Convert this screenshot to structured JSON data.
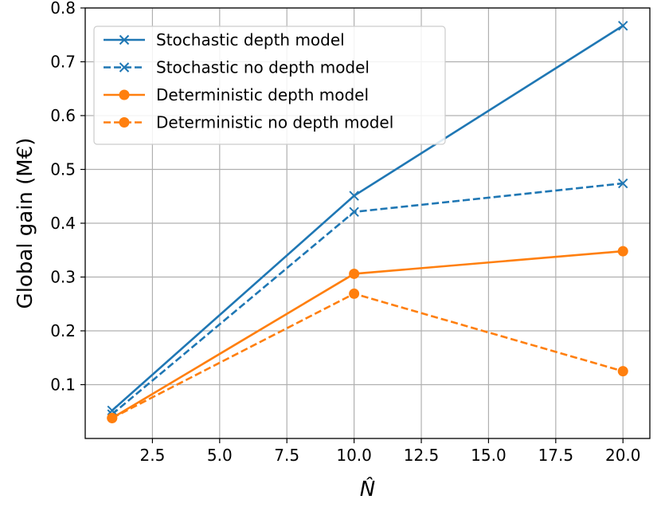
{
  "chart_data": {
    "type": "line",
    "title": "",
    "xlabel": "N̂",
    "ylabel": "Global gain (M€)",
    "x": [
      1,
      10,
      20
    ],
    "xlim": [
      -0.0,
      21.0
    ],
    "ylim": [
      0.0,
      0.8
    ],
    "xticks": [
      2.5,
      5.0,
      7.5,
      10.0,
      12.5,
      15.0,
      17.5,
      20.0
    ],
    "xtick_labels": [
      "2.5",
      "5.0",
      "7.5",
      "10.0",
      "12.5",
      "15.0",
      "17.5",
      "20.0"
    ],
    "yticks": [
      0.1,
      0.2,
      0.3,
      0.4,
      0.5,
      0.6,
      0.7,
      0.8
    ],
    "ytick_labels": [
      "0.1",
      "0.2",
      "0.3",
      "0.4",
      "0.5",
      "0.6",
      "0.7",
      "0.8"
    ],
    "grid": true,
    "legend_position": "top-left",
    "series": [
      {
        "name": "Stochastic depth model",
        "values": [
          0.052,
          0.451,
          0.767
        ],
        "color": "#1f77b4",
        "dash": "solid",
        "marker": "x"
      },
      {
        "name": "Stochastic no depth model",
        "values": [
          0.045,
          0.421,
          0.474
        ],
        "color": "#1f77b4",
        "dash": "dashed",
        "marker": "x"
      },
      {
        "name": "Deterministic depth model",
        "values": [
          0.038,
          0.306,
          0.348
        ],
        "color": "#ff7f0e",
        "dash": "solid",
        "marker": "o"
      },
      {
        "name": "Deterministic no depth model",
        "values": [
          0.038,
          0.269,
          0.125
        ],
        "color": "#ff7f0e",
        "dash": "dashed",
        "marker": "o"
      }
    ]
  }
}
